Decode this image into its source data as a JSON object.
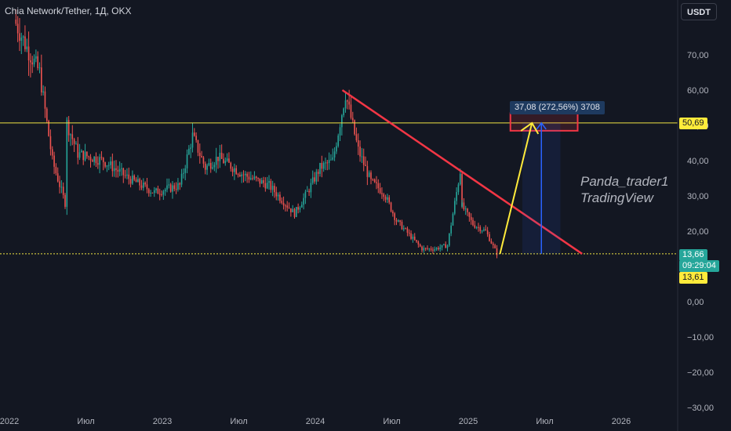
{
  "header": {
    "symbol": "Chia Network/Tether, 1Д, OKX",
    "currency_button": "USDT"
  },
  "watermark": {
    "line1": "Panda_trader1",
    "line2": "TradingView"
  },
  "measure_label": "37,08 (272,56%) 3708",
  "price_tags": {
    "resistance": "50,69",
    "current_price": "13,66",
    "countdown": "09:29:04",
    "support": "13,61"
  },
  "colors": {
    "background": "#131722",
    "up": "#26a69a",
    "down": "#ef5350",
    "level_line": "#f0e442",
    "trendline": "#f23645",
    "projection_arrow": "#ffeb3b",
    "measure_arrow": "#2962ff",
    "current_price_tag": "#26a69a",
    "level_tag": "#ffeb3b"
  },
  "chart_data": {
    "type": "candlestick",
    "title": "",
    "y_axis": {
      "ticks": [
        "70,00",
        "60,00",
        "50,00",
        "40,00",
        "30,00",
        "20,00",
        "10,00",
        "0,00",
        "−10,00",
        "−20,00",
        "−30,00"
      ],
      "values": [
        70,
        60,
        50,
        40,
        30,
        20,
        10,
        0,
        -10,
        -20,
        -30
      ],
      "range": [
        -30,
        82
      ]
    },
    "x_axis": {
      "ticks": [
        "2022",
        "Июл",
        "2023",
        "Июл",
        "2024",
        "Июл",
        "2025",
        "Июл",
        "2026"
      ],
      "dates": [
        "2022-01",
        "2022-07",
        "2023-01",
        "2023-07",
        "2024-01",
        "2024-07",
        "2025-01",
        "2025-07",
        "2026-01"
      ]
    },
    "price_path": [
      {
        "date": "2022-01",
        "close": 80
      },
      {
        "date": "2022-02",
        "close": 72
      },
      {
        "date": "2022-03",
        "close": 65
      },
      {
        "date": "2022-04",
        "close": 40
      },
      {
        "date": "2022-05",
        "close": 28
      },
      {
        "date": "2022-05",
        "close": 52
      },
      {
        "date": "2022-06",
        "close": 42
      },
      {
        "date": "2022-08",
        "close": 40
      },
      {
        "date": "2022-10",
        "close": 35
      },
      {
        "date": "2022-12",
        "close": 31
      },
      {
        "date": "2023-02",
        "close": 33
      },
      {
        "date": "2023-03",
        "close": 47
      },
      {
        "date": "2023-04",
        "close": 38
      },
      {
        "date": "2023-05",
        "close": 41
      },
      {
        "date": "2023-07",
        "close": 36
      },
      {
        "date": "2023-09",
        "close": 33
      },
      {
        "date": "2023-11",
        "close": 25
      },
      {
        "date": "2023-12",
        "close": 31
      },
      {
        "date": "2024-01",
        "close": 38
      },
      {
        "date": "2024-02",
        "close": 40
      },
      {
        "date": "2024-03",
        "close": 59
      },
      {
        "date": "2024-04",
        "close": 43
      },
      {
        "date": "2024-05",
        "close": 34
      },
      {
        "date": "2024-06",
        "close": 31
      },
      {
        "date": "2024-07",
        "close": 23
      },
      {
        "date": "2024-08",
        "close": 19
      },
      {
        "date": "2024-09",
        "close": 15
      },
      {
        "date": "2024-10",
        "close": 15
      },
      {
        "date": "2024-11",
        "close": 16
      },
      {
        "date": "2024-12",
        "close": 37
      },
      {
        "date": "2024-12",
        "close": 28
      },
      {
        "date": "2025-01",
        "close": 22
      },
      {
        "date": "2025-02",
        "close": 20
      },
      {
        "date": "2025-03",
        "close": 13.66
      }
    ],
    "levels": [
      {
        "label": "50,69",
        "value": 50.69
      },
      {
        "label": "13,61",
        "value": 13.61
      }
    ],
    "current_price": 13.66,
    "trendline": {
      "from": {
        "date": "2024-03",
        "value": 60
      },
      "to": {
        "date": "2025-10",
        "value": 13.6
      }
    },
    "projection": {
      "from_value": 13.61,
      "to_value": 50.69,
      "change": "37,08",
      "change_pct": "272,56%"
    },
    "grid": false,
    "legend": "none"
  }
}
